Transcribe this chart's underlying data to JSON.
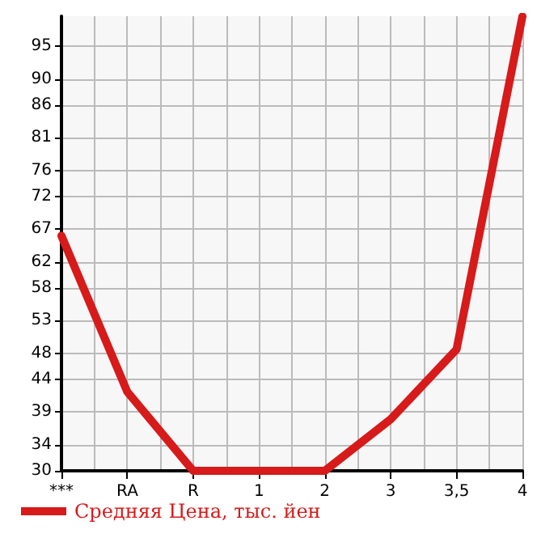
{
  "chart_data": {
    "type": "line",
    "categories": [
      "***",
      "RA",
      "R",
      "1",
      "2",
      "3",
      "3,5",
      "4"
    ],
    "series": [
      {
        "name": "Средняя Цена, тыс. йен",
        "color": "#d71a1a",
        "values": [
          66,
          42.1,
          30,
          30,
          30,
          37.9,
          48.6,
          99.6
        ]
      }
    ],
    "ylim": [
      30,
      99.64
    ],
    "yticks": [
      30,
      34,
      39,
      44,
      48,
      53,
      58,
      62,
      67,
      72,
      76,
      81,
      86,
      90,
      95
    ],
    "grid": true,
    "legend": "bottom left",
    "marker": "none",
    "line_style": "solid"
  }
}
